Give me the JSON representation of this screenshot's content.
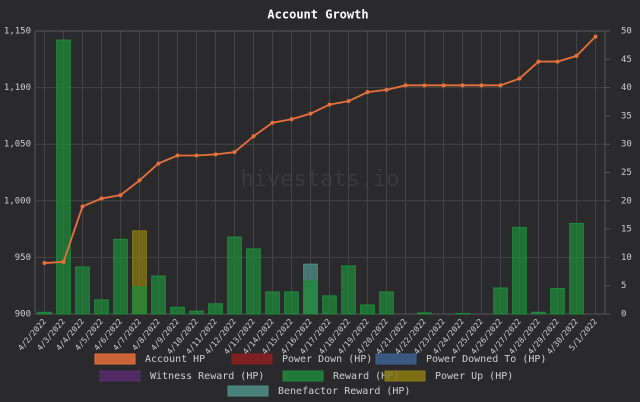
{
  "chart_data": {
    "type": "bar_line",
    "title": "Account Growth",
    "watermark": "hivestats.io",
    "categories": [
      "4/2/2022",
      "4/3/2022",
      "4/4/2022",
      "4/5/2022",
      "4/6/2022",
      "4/7/2022",
      "4/8/2022",
      "4/9/2022",
      "4/10/2022",
      "4/11/2022",
      "4/12/2022",
      "4/13/2022",
      "4/14/2022",
      "4/15/2022",
      "4/16/2022",
      "4/17/2022",
      "4/18/2022",
      "4/19/2022",
      "4/20/2022",
      "4/21/2022",
      "4/22/2022",
      "4/23/2022",
      "4/24/2022",
      "4/25/2022",
      "4/26/2022",
      "4/27/2022",
      "4/28/2022",
      "4/29/2022",
      "4/30/2022",
      "5/1/2022"
    ],
    "ylim": [
      900,
      1150
    ],
    "yticks": [
      900,
      950,
      {
        "value": 1000,
        "label": "1,000"
      },
      {
        "value": 1050,
        "label": "1,050"
      },
      {
        "value": 1100,
        "label": "1,100"
      },
      {
        "value": 1150,
        "label": "1,150"
      }
    ],
    "y2lim": [
      0,
      50
    ],
    "y2ticks": [
      0,
      5,
      10,
      15,
      20,
      25,
      30,
      35,
      40,
      45,
      50
    ],
    "grid": true,
    "series": [
      {
        "name": "Account HP",
        "type": "line",
        "axis": "y",
        "color": "#e8703a",
        "values": [
          945,
          946,
          995,
          1002,
          1005,
          1018,
          1033,
          1040,
          1040,
          1041,
          1043,
          1057,
          1069,
          1072,
          1077,
          1085,
          1088,
          1096,
          1098,
          1102,
          1102,
          1102,
          1102,
          1102,
          1102,
          1108,
          1123,
          1123,
          1128,
          1145
        ]
      },
      {
        "name": "Power Down (HP)",
        "type": "bar",
        "axis": "y2",
        "color": "#8b1f1f",
        "values": [
          0,
          0,
          0,
          0,
          0,
          0,
          0,
          0,
          0,
          0,
          0,
          0,
          0,
          0,
          0,
          0,
          0,
          0,
          0,
          0,
          0,
          0,
          0,
          0,
          0,
          0,
          0,
          0,
          0,
          0
        ]
      },
      {
        "name": "Power Downed To (HP)",
        "type": "bar",
        "axis": "y2",
        "color": "#3d5f8f",
        "values": [
          0,
          0,
          0,
          0,
          0,
          0,
          0,
          0,
          0,
          0,
          0,
          0,
          0,
          0,
          0,
          0,
          0,
          0,
          0,
          0,
          0,
          0,
          0,
          0,
          0,
          0,
          0,
          0,
          0,
          0
        ]
      },
      {
        "name": "Witness Reward (HP)",
        "type": "bar",
        "axis": "y2",
        "color": "#5a2c6c",
        "values": [
          0,
          0,
          0,
          0,
          0,
          0,
          0,
          0,
          0,
          0,
          0,
          0,
          0,
          0,
          0,
          0,
          0,
          0,
          0,
          0,
          0,
          0,
          0,
          0,
          0,
          0,
          0,
          0,
          0,
          0
        ]
      },
      {
        "name": "Power Up (HP)",
        "type": "bar",
        "axis": "y2",
        "color": "#8a7a12",
        "values": [
          0,
          0,
          0,
          0,
          0,
          14.7,
          0,
          0,
          0,
          0,
          0,
          0,
          0,
          0,
          0,
          0,
          0,
          0,
          0,
          0,
          0,
          0,
          0,
          0,
          0,
          0,
          0,
          0,
          0,
          0
        ]
      },
      {
        "name": "Benefactor Reward (HP)",
        "type": "bar",
        "axis": "y2",
        "color": "#4f8f86",
        "values": [
          0,
          0,
          0,
          0,
          0,
          0,
          0,
          0,
          0,
          0,
          0,
          0,
          0,
          0,
          8.8,
          0,
          0,
          0,
          0,
          0,
          0,
          0,
          0,
          0,
          0,
          0,
          0,
          0,
          0,
          0
        ]
      },
      {
        "name": "Reward (HP)",
        "type": "bar",
        "axis": "y2",
        "color": "#1f8a3a",
        "values": [
          0.3,
          48.4,
          8.3,
          2.5,
          13.2,
          4.8,
          6.7,
          1.2,
          0.5,
          1.8,
          13.6,
          11.5,
          3.9,
          3.9,
          5.8,
          3.2,
          8.5,
          1.6,
          3.9,
          0,
          0.2,
          0,
          0.1,
          0,
          4.6,
          15.3,
          0.3,
          4.5,
          16.0,
          0
        ]
      }
    ]
  }
}
